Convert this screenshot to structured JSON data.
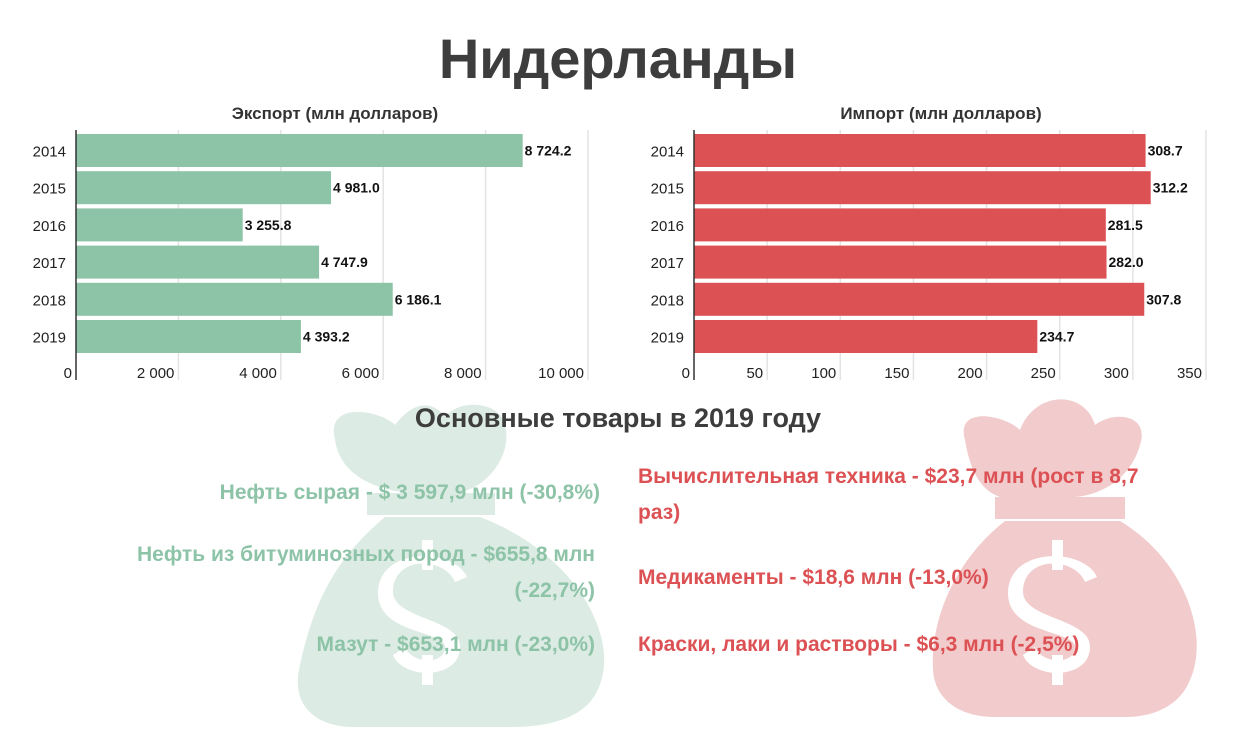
{
  "title": "Нидерланды",
  "colors": {
    "export": "#8dc3a7",
    "import": "#dc5154",
    "bag_export": "#dcebe3",
    "bag_import": "#f2cbcc"
  },
  "icons": {
    "left_bag": "money-bag-icon",
    "right_bag": "money-bag-icon"
  },
  "chart_data": [
    {
      "type": "bar",
      "orientation": "horizontal",
      "title": "Экспорт (млн долларов)",
      "categories": [
        "2014",
        "2015",
        "2016",
        "2017",
        "2018",
        "2019"
      ],
      "values": [
        8724.2,
        4981.0,
        3255.8,
        4747.9,
        6186.1,
        4393.2
      ],
      "value_labels": [
        "8 724.2",
        "4 981.0",
        "3 255.8",
        "4 747.9",
        "6 186.1",
        "4 393.2"
      ],
      "xlim": [
        0,
        10000
      ],
      "ticks": [
        0,
        2000,
        4000,
        6000,
        8000,
        10000
      ],
      "tick_labels": [
        "0",
        "2 000",
        "4 000",
        "6 000",
        "8 000",
        "10 000"
      ],
      "grid": true
    },
    {
      "type": "bar",
      "orientation": "horizontal",
      "title": "Импорт (млн долларов)",
      "categories": [
        "2014",
        "2015",
        "2016",
        "2017",
        "2018",
        "2019"
      ],
      "values": [
        308.7,
        312.2,
        281.5,
        282.0,
        307.8,
        234.7
      ],
      "value_labels": [
        "308.7",
        "312.2",
        "281.5",
        "282.0",
        "307.8",
        "234.7"
      ],
      "xlim": [
        0,
        350
      ],
      "ticks": [
        0,
        50,
        100,
        150,
        200,
        250,
        300,
        350
      ],
      "tick_labels": [
        "0",
        "50",
        "100",
        "150",
        "200",
        "250",
        "300",
        "350"
      ],
      "grid": true
    }
  ],
  "section_title": "Основные товары в 2019 году",
  "export_goods": [
    "Нефть сырая - $ 3 597,9 млн (-30,8%)",
    "Нефть из битуминозных пород - $655,8 млн (-22,7%)",
    "Мазут - $653,1 млн (-23,0%)"
  ],
  "import_goods": [
    "Вычислительная техника - $23,7 млн (рост в 8,7 раз)",
    "Медикаменты - $18,6 млн (-13,0%)",
    "Краски, лаки и растворы - $6,3 млн (-2,5%)"
  ]
}
